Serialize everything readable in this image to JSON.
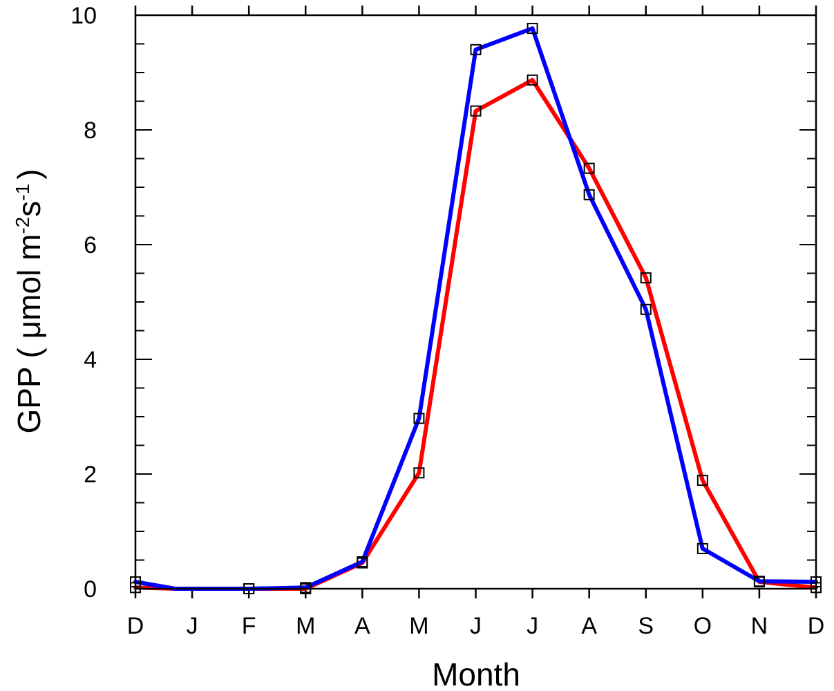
{
  "chart_data": {
    "type": "line",
    "title": "",
    "xlabel": "Month",
    "ylabel_main": "GPP ( μmol m",
    "ylabel_sup1": "-2",
    "ylabel_mid": "s",
    "ylabel_sup2": "-1",
    "ylabel_end": ")",
    "ylim": [
      0,
      10
    ],
    "x_ticks": [
      {
        "x": 0,
        "label": "D"
      },
      {
        "x": 1,
        "label": "J"
      },
      {
        "x": 2,
        "label": "F"
      },
      {
        "x": 3,
        "label": "M"
      },
      {
        "x": 4,
        "label": "A"
      },
      {
        "x": 5,
        "label": "M"
      },
      {
        "x": 6,
        "label": "J"
      },
      {
        "x": 7,
        "label": "J"
      },
      {
        "x": 8,
        "label": "A"
      },
      {
        "x": 9,
        "label": "S"
      },
      {
        "x": 10,
        "label": "O"
      },
      {
        "x": 11,
        "label": "N"
      },
      {
        "x": 12,
        "label": "D"
      }
    ],
    "y_ticks": [
      {
        "y": 0,
        "label": "0"
      },
      {
        "y": 2,
        "label": "2"
      },
      {
        "y": 4,
        "label": "4"
      },
      {
        "y": 6,
        "label": "6"
      },
      {
        "y": 8,
        "label": "8"
      },
      {
        "y": 10,
        "label": "10"
      }
    ],
    "grid": false,
    "series": [
      {
        "color": "#ff0000",
        "points": [
          [
            0,
            0.02
          ],
          [
            0.7,
            0.0
          ],
          [
            2,
            0.0
          ],
          [
            3,
            0.0
          ],
          [
            4,
            0.45
          ],
          [
            5,
            2.02
          ],
          [
            6,
            8.33
          ],
          [
            7,
            8.87
          ],
          [
            8,
            7.33
          ],
          [
            9,
            5.42
          ],
          [
            10,
            1.89
          ],
          [
            11,
            0.12
          ],
          [
            12,
            0.02
          ]
        ],
        "markers": [
          [
            0,
            0.02
          ],
          [
            2,
            0.0
          ],
          [
            3,
            0.0
          ],
          [
            4,
            0.45
          ],
          [
            5,
            2.02
          ],
          [
            6,
            8.33
          ],
          [
            7,
            8.87
          ],
          [
            8,
            7.33
          ],
          [
            9,
            5.42
          ],
          [
            10,
            1.89
          ],
          [
            11,
            0.12
          ],
          [
            12,
            0.02
          ]
        ]
      },
      {
        "color": "#0000ff",
        "points": [
          [
            0,
            0.12
          ],
          [
            0.7,
            0.0
          ],
          [
            2,
            0.0
          ],
          [
            3,
            0.02
          ],
          [
            4,
            0.47
          ],
          [
            5,
            2.97
          ],
          [
            6,
            9.4
          ],
          [
            7,
            9.77
          ],
          [
            8,
            6.87
          ],
          [
            9,
            4.87
          ],
          [
            10,
            0.7
          ],
          [
            11,
            0.13
          ],
          [
            12,
            0.12
          ]
        ],
        "markers": [
          [
            0,
            0.12
          ],
          [
            2,
            0.0
          ],
          [
            3,
            0.02
          ],
          [
            4,
            0.47
          ],
          [
            5,
            2.97
          ],
          [
            6,
            9.4
          ],
          [
            7,
            9.77
          ],
          [
            8,
            6.87
          ],
          [
            9,
            4.87
          ],
          [
            10,
            0.7
          ],
          [
            11,
            0.13
          ],
          [
            12,
            0.12
          ]
        ]
      }
    ]
  }
}
